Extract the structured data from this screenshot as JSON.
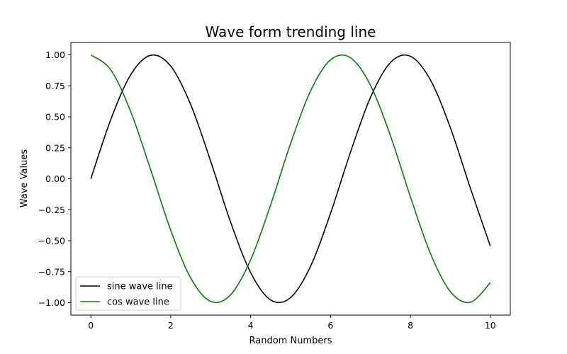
{
  "chart_data": {
    "type": "line",
    "title": "Wave form trending line",
    "xlabel": "Random Numbers",
    "ylabel": "Wave Values",
    "xlim": [
      -0.5,
      10.5
    ],
    "ylim": [
      -1.1,
      1.1
    ],
    "x_ticks": [
      0,
      2,
      4,
      6,
      8,
      10
    ],
    "x_tick_labels": [
      "0",
      "2",
      "4",
      "6",
      "8",
      "10"
    ],
    "y_ticks": [
      1.0,
      0.75,
      0.5,
      0.25,
      0.0,
      -0.25,
      -0.5,
      -0.75,
      -1.0
    ],
    "y_tick_labels": [
      "1.00",
      "0.75",
      "0.50",
      "0.25",
      "0.00",
      "−0.25",
      "−0.50",
      "−0.75",
      "−1.00"
    ],
    "grid": false,
    "legend_position": "lower-left",
    "series": [
      {
        "name": "sine wave line",
        "color": "#000000",
        "x": [
          0,
          0.5,
          1,
          1.5,
          2,
          2.5,
          3,
          3.5,
          4,
          4.5,
          5,
          5.5,
          6,
          6.5,
          7,
          7.5,
          8,
          8.5,
          9,
          9.5,
          10
        ],
        "y": [
          0,
          0.479,
          0.841,
          0.997,
          0.909,
          0.598,
          0.141,
          -0.351,
          -0.757,
          -0.978,
          -0.959,
          -0.706,
          -0.279,
          0.215,
          0.657,
          0.938,
          0.989,
          0.798,
          0.412,
          -0.075,
          -0.544
        ]
      },
      {
        "name": "cos wave line",
        "color": "#008000",
        "x": [
          0,
          0.5,
          1,
          1.5,
          2,
          2.5,
          3,
          3.5,
          4,
          4.5,
          5,
          5.5,
          6,
          6.5,
          7,
          7.5,
          8,
          8.5,
          9,
          9.5,
          10
        ],
        "y": [
          1,
          0.878,
          0.54,
          0.071,
          -0.416,
          -0.801,
          -0.99,
          -0.936,
          -0.654,
          -0.211,
          0.284,
          0.709,
          0.96,
          0.977,
          0.754,
          0.347,
          -0.146,
          -0.602,
          -0.911,
          -0.997,
          -0.839
        ]
      }
    ]
  }
}
